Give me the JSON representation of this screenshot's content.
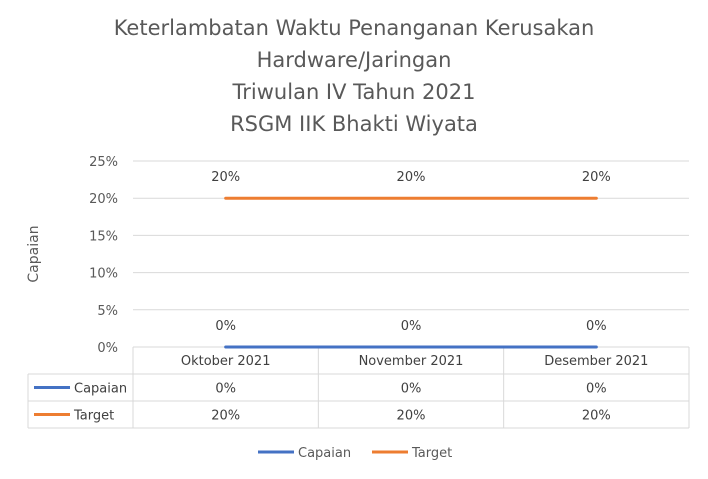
{
  "chart_data": {
    "type": "line",
    "title_lines": [
      "Keterlambatan Waktu Penanganan Kerusakan",
      "Hardware/Jaringan",
      "Triwulan IV Tahun 2021",
      "RSGM IIK Bhakti Wiyata"
    ],
    "ylabel": "Capaian",
    "xlabel": "",
    "categories": [
      "Oktober 2021",
      "November 2021",
      "Desember 2021"
    ],
    "ylim": [
      0,
      0.25
    ],
    "yticks": [
      0,
      0.05,
      0.1,
      0.15,
      0.2,
      0.25
    ],
    "ytick_labels": [
      "0%",
      "5%",
      "10%",
      "15%",
      "20%",
      "25%"
    ],
    "grid": true,
    "legend_position": "bottom",
    "data_table": true,
    "series": [
      {
        "name": "Capaian",
        "values": [
          0,
          0,
          0
        ],
        "labels": [
          "0%",
          "0%",
          "0%"
        ],
        "color": "#4472C4"
      },
      {
        "name": "Target",
        "values": [
          0.2,
          0.2,
          0.2
        ],
        "labels": [
          "20%",
          "20%",
          "20%"
        ],
        "color": "#ED7D31"
      }
    ]
  }
}
